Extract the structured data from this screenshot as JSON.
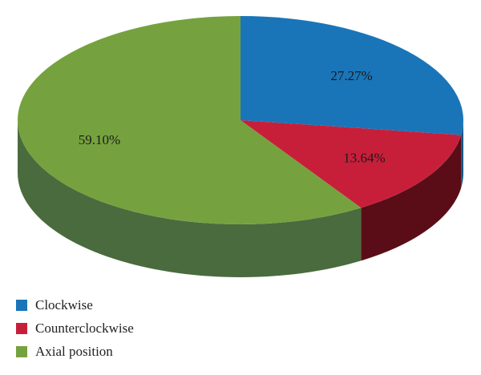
{
  "chart_data": {
    "type": "pie",
    "style": "3d",
    "slices": [
      {
        "label": "Clockwise",
        "value": 27.27,
        "display": "27.27%",
        "color": "#1a75b8",
        "side_color": "#135786"
      },
      {
        "label": "Counterclockwise",
        "value": 13.64,
        "display": "13.64%",
        "color": "#c71f3a",
        "side_color": "#5a0d16"
      },
      {
        "label": "Axial position",
        "value": 59.1,
        "display": "59.10%",
        "color": "#75a23e",
        "side_color": "#4a6b3d"
      }
    ],
    "legend_placement": "bottom-left"
  }
}
